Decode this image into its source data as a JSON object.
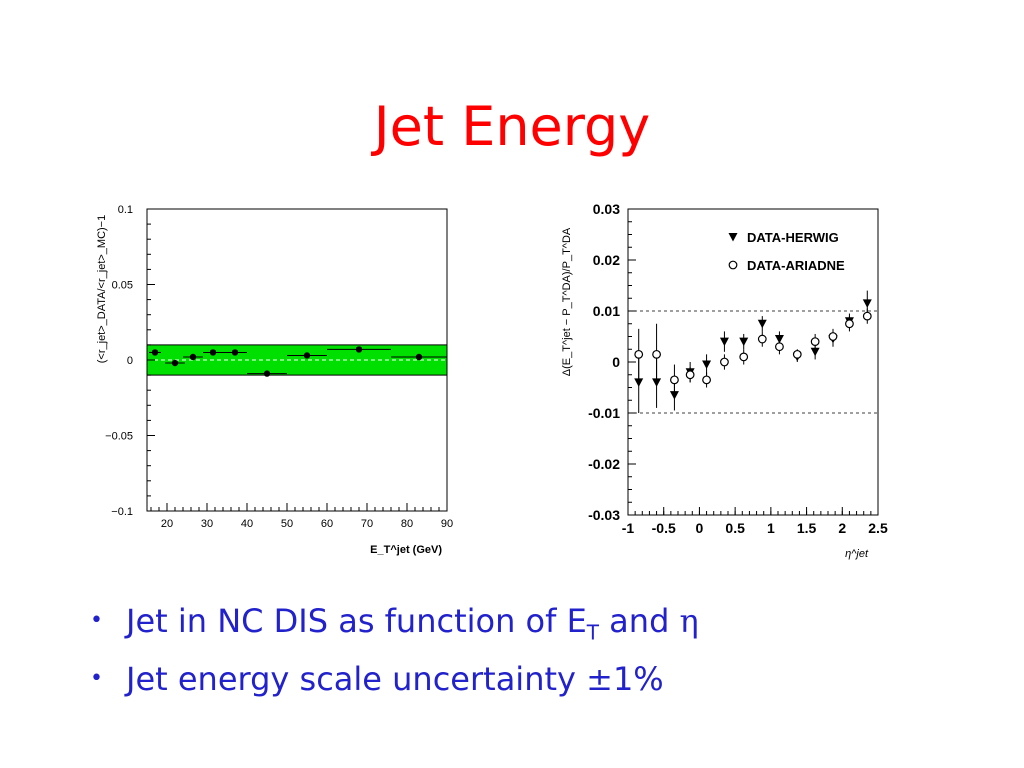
{
  "slide": {
    "title": "Jet Energy"
  },
  "bullets": [
    {
      "pre": "Jet in NC DIS as function of E",
      "sub": "T",
      "mid": " and ",
      "greek": "η"
    },
    {
      "pre": "Jet energy scale uncertainty ",
      "greek": "±",
      "post": "1%"
    }
  ],
  "chart_data": [
    {
      "type": "scatter",
      "xlabel": "E_T^jet (GeV)",
      "ylabel": "(<r_jet>_DATA/<r_jet>_MC)−1",
      "xlim": [
        15,
        90
      ],
      "ylim": [
        -0.1,
        0.1
      ],
      "xticks": [
        20,
        30,
        40,
        50,
        60,
        70,
        80,
        90
      ],
      "yticks": [
        -0.1,
        -0.05,
        0,
        0.05,
        0.1
      ],
      "ytick_labels": [
        "−0.1",
        "−0.05",
        "0",
        "0.05",
        "0.1"
      ],
      "band": {
        "ymin": -0.01,
        "ymax": 0.01,
        "color": "#00e000"
      },
      "series": [
        {
          "points": [
            {
              "x": 17,
              "y": 0.005,
              "xerr": 1.5
            },
            {
              "x": 22,
              "y": -0.002,
              "xerr": 2.5
            },
            {
              "x": 26.5,
              "y": 0.002,
              "xerr": 2.5
            },
            {
              "x": 31.5,
              "y": 0.005,
              "xerr": 2.5
            },
            {
              "x": 37,
              "y": 0.005,
              "xerr": 3
            },
            {
              "x": 45,
              "y": -0.009,
              "xerr": 5
            },
            {
              "x": 55,
              "y": 0.003,
              "xerr": 5
            },
            {
              "x": 68,
              "y": 0.007,
              "xerr": 8
            },
            {
              "x": 83,
              "y": 0.002,
              "xerr": 7
            }
          ]
        }
      ],
      "grid": false
    },
    {
      "type": "scatter",
      "xlabel": "η^jet",
      "ylabel": "Δ(E_T^jet − P_T^DA)/P_T^DA",
      "xlim": [
        -1,
        2.5
      ],
      "ylim": [
        -0.03,
        0.03
      ],
      "xticks": [
        -1,
        -0.5,
        0,
        0.5,
        1,
        1.5,
        2,
        2.5
      ],
      "xtick_labels": [
        "-1",
        "-0.5",
        "0",
        "0.5",
        "1",
        "1.5",
        "2",
        "2.5"
      ],
      "yticks": [
        -0.03,
        -0.02,
        -0.01,
        0,
        0.01,
        0.02,
        0.03
      ],
      "ytick_labels": [
        "-0.03",
        "-0.02",
        "-0.01",
        "0",
        "0.01",
        "0.02",
        "0.03"
      ],
      "reference_lines": [
        0.01,
        -0.01
      ],
      "legend_position": "top-right",
      "series": [
        {
          "name": "DATA-HERWIG",
          "marker": "filled-triangle-down",
          "points": [
            {
              "x": -0.85,
              "y": -0.004,
              "yerr": 0.006
            },
            {
              "x": -0.6,
              "y": -0.004,
              "yerr": 0.005
            },
            {
              "x": -0.35,
              "y": -0.0065,
              "yerr": 0.003
            },
            {
              "x": -0.13,
              "y": -0.002,
              "yerr": 0.002
            },
            {
              "x": 0.1,
              "y": -0.0005,
              "yerr": 0.002
            },
            {
              "x": 0.35,
              "y": 0.004,
              "yerr": 0.002
            },
            {
              "x": 0.62,
              "y": 0.004,
              "yerr": 0.0015
            },
            {
              "x": 0.88,
              "y": 0.0075,
              "yerr": 0.0015
            },
            {
              "x": 1.12,
              "y": 0.0045,
              "yerr": 0.0015
            },
            {
              "x": 1.37,
              "y": 0.001,
              "yerr": 0.001
            },
            {
              "x": 1.62,
              "y": 0.002,
              "yerr": 0.0015
            },
            {
              "x": 1.87,
              "y": 0.0045,
              "yerr": 0.0015
            },
            {
              "x": 2.1,
              "y": 0.008,
              "yerr": 0.0015
            },
            {
              "x": 2.35,
              "y": 0.0115,
              "yerr": 0.0025
            }
          ]
        },
        {
          "name": "DATA-ARIADNE",
          "marker": "open-circle",
          "points": [
            {
              "x": -0.85,
              "y": 0.0015,
              "yerr": 0.005
            },
            {
              "x": -0.6,
              "y": 0.0015,
              "yerr": 0.006
            },
            {
              "x": -0.35,
              "y": -0.0035,
              "yerr": 0.003
            },
            {
              "x": -0.13,
              "y": -0.0025,
              "yerr": 0.0015
            },
            {
              "x": 0.1,
              "y": -0.0035,
              "yerr": 0.0015
            },
            {
              "x": 0.35,
              "y": 0.0,
              "yerr": 0.0015
            },
            {
              "x": 0.62,
              "y": 0.001,
              "yerr": 0.0015
            },
            {
              "x": 0.88,
              "y": 0.0045,
              "yerr": 0.0015
            },
            {
              "x": 1.12,
              "y": 0.003,
              "yerr": 0.0015
            },
            {
              "x": 1.37,
              "y": 0.0015,
              "yerr": 0.001
            },
            {
              "x": 1.62,
              "y": 0.004,
              "yerr": 0.0015
            },
            {
              "x": 1.87,
              "y": 0.005,
              "yerr": 0.0015
            },
            {
              "x": 2.1,
              "y": 0.0075,
              "yerr": 0.0015
            },
            {
              "x": 2.35,
              "y": 0.009,
              "yerr": 0.0015
            }
          ]
        }
      ],
      "grid": false
    }
  ]
}
